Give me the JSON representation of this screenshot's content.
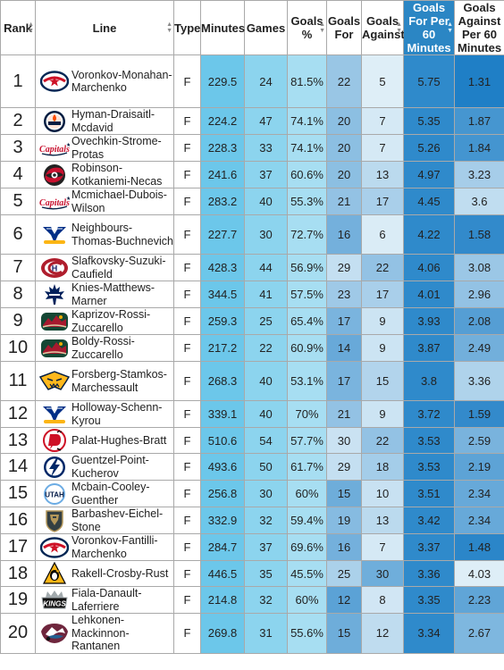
{
  "columns": [
    "Rank",
    "Line",
    "Type",
    "Minutes",
    "Games",
    "Goals %",
    "Goals For",
    "Goals Against",
    "Goals For Per 60 Minutes",
    "Goals Against Per 60 Minutes"
  ],
  "colors": {
    "header_highlight": "#2b86c4",
    "minutes_cell": "#6cc7ea",
    "games_cell": "#8cd4ee",
    "goals_pct_cell": "#a7def2",
    "gf60_cell": "#2f8acb",
    "ga60_top": "#1f7fc6"
  },
  "rows": [
    {
      "rank": "1",
      "line": "Voronkov-Monahan-Marchenko",
      "team_icon": "blue-jackets-logo-icon",
      "type": "F",
      "minutes": "229.5",
      "games": "24",
      "goals_pct": "81.5%",
      "goals_for": "22",
      "goals_against": "5",
      "gf60": "5.75",
      "ga60": "1.31"
    },
    {
      "rank": "2",
      "line": "Hyman-Draisaitl-Mcdavid",
      "team_icon": "oilers-logo-icon",
      "type": "F",
      "minutes": "224.2",
      "games": "47",
      "goals_pct": "74.1%",
      "goals_for": "20",
      "goals_against": "7",
      "gf60": "5.35",
      "ga60": "1.87"
    },
    {
      "rank": "3",
      "line": "Ovechkin-Strome-Protas",
      "team_icon": "capitals-logo-icon",
      "type": "F",
      "minutes": "228.3",
      "games": "33",
      "goals_pct": "74.1%",
      "goals_for": "20",
      "goals_against": "7",
      "gf60": "5.26",
      "ga60": "1.84"
    },
    {
      "rank": "4",
      "line": "Robinson-Kotkaniemi-Necas",
      "team_icon": "hurricanes-logo-icon",
      "type": "F",
      "minutes": "241.6",
      "games": "37",
      "goals_pct": "60.6%",
      "goals_for": "20",
      "goals_against": "13",
      "gf60": "4.97",
      "ga60": "3.23"
    },
    {
      "rank": "5",
      "line": "Mcmichael-Dubois-Wilson",
      "team_icon": "capitals-logo-icon",
      "type": "F",
      "minutes": "283.2",
      "games": "40",
      "goals_pct": "55.3%",
      "goals_for": "21",
      "goals_against": "17",
      "gf60": "4.45",
      "ga60": "3.6"
    },
    {
      "rank": "6",
      "line": "Neighbours-Thomas-Buchnevich",
      "team_icon": "blues-logo-icon",
      "type": "F",
      "minutes": "227.7",
      "games": "30",
      "goals_pct": "72.7%",
      "goals_for": "16",
      "goals_against": "6",
      "gf60": "4.22",
      "ga60": "1.58"
    },
    {
      "rank": "7",
      "line": "Slafkovsky-Suzuki-Caufield",
      "team_icon": "canadiens-logo-icon",
      "type": "F",
      "minutes": "428.3",
      "games": "44",
      "goals_pct": "56.9%",
      "goals_for": "29",
      "goals_against": "22",
      "gf60": "4.06",
      "ga60": "3.08"
    },
    {
      "rank": "8",
      "line": "Knies-Matthews-Marner",
      "team_icon": "maple-leafs-logo-icon",
      "type": "F",
      "minutes": "344.5",
      "games": "41",
      "goals_pct": "57.5%",
      "goals_for": "23",
      "goals_against": "17",
      "gf60": "4.01",
      "ga60": "2.96"
    },
    {
      "rank": "9",
      "line": "Kaprizov-Rossi-Zuccarello",
      "team_icon": "wild-logo-icon",
      "type": "F",
      "minutes": "259.3",
      "games": "25",
      "goals_pct": "65.4%",
      "goals_for": "17",
      "goals_against": "9",
      "gf60": "3.93",
      "ga60": "2.08"
    },
    {
      "rank": "10",
      "line": "Boldy-Rossi-Zuccarello",
      "team_icon": "wild-logo-icon",
      "type": "F",
      "minutes": "217.2",
      "games": "22",
      "goals_pct": "60.9%",
      "goals_for": "14",
      "goals_against": "9",
      "gf60": "3.87",
      "ga60": "2.49"
    },
    {
      "rank": "11",
      "line": "Forsberg-Stamkos-Marchessault",
      "team_icon": "predators-logo-icon",
      "type": "F",
      "minutes": "268.3",
      "games": "40",
      "goals_pct": "53.1%",
      "goals_for": "17",
      "goals_against": "15",
      "gf60": "3.8",
      "ga60": "3.36"
    },
    {
      "rank": "12",
      "line": "Holloway-Schenn-Kyrou",
      "team_icon": "blues-logo-icon",
      "type": "F",
      "minutes": "339.1",
      "games": "40",
      "goals_pct": "70%",
      "goals_for": "21",
      "goals_against": "9",
      "gf60": "3.72",
      "ga60": "1.59"
    },
    {
      "rank": "13",
      "line": "Palat-Hughes-Bratt",
      "team_icon": "devils-logo-icon",
      "type": "F",
      "minutes": "510.6",
      "games": "54",
      "goals_pct": "57.7%",
      "goals_for": "30",
      "goals_against": "22",
      "gf60": "3.53",
      "ga60": "2.59"
    },
    {
      "rank": "14",
      "line": "Guentzel-Point-Kucherov",
      "team_icon": "lightning-logo-icon",
      "type": "F",
      "minutes": "493.6",
      "games": "50",
      "goals_pct": "61.7%",
      "goals_for": "29",
      "goals_against": "18",
      "gf60": "3.53",
      "ga60": "2.19"
    },
    {
      "rank": "15",
      "line": "Mcbain-Cooley-Guenther",
      "team_icon": "utah-logo-icon",
      "type": "F",
      "minutes": "256.8",
      "games": "30",
      "goals_pct": "60%",
      "goals_for": "15",
      "goals_against": "10",
      "gf60": "3.51",
      "ga60": "2.34"
    },
    {
      "rank": "16",
      "line": "Barbashev-Eichel-Stone",
      "team_icon": "golden-knights-logo-icon",
      "type": "F",
      "minutes": "332.9",
      "games": "32",
      "goals_pct": "59.4%",
      "goals_for": "19",
      "goals_against": "13",
      "gf60": "3.42",
      "ga60": "2.34"
    },
    {
      "rank": "17",
      "line": "Voronkov-Fantilli-Marchenko",
      "team_icon": "blue-jackets-logo-icon",
      "type": "F",
      "minutes": "284.7",
      "games": "37",
      "goals_pct": "69.6%",
      "goals_for": "16",
      "goals_against": "7",
      "gf60": "3.37",
      "ga60": "1.48"
    },
    {
      "rank": "18",
      "line": "Rakell-Crosby-Rust",
      "team_icon": "penguins-logo-icon",
      "type": "F",
      "minutes": "446.5",
      "games": "35",
      "goals_pct": "45.5%",
      "goals_for": "25",
      "goals_against": "30",
      "gf60": "3.36",
      "ga60": "4.03"
    },
    {
      "rank": "19",
      "line": "Fiala-Danault-Laferriere",
      "team_icon": "kings-logo-icon",
      "type": "F",
      "minutes": "214.8",
      "games": "32",
      "goals_pct": "60%",
      "goals_for": "12",
      "goals_against": "8",
      "gf60": "3.35",
      "ga60": "2.23"
    },
    {
      "rank": "20",
      "line": "Lehkonen-Mackinnon-Rantanen",
      "team_icon": "avalanche-logo-icon",
      "type": "F",
      "minutes": "269.8",
      "games": "31",
      "goals_pct": "55.6%",
      "goals_for": "15",
      "goals_against": "12",
      "gf60": "3.34",
      "ga60": "2.67"
    }
  ],
  "logo_text": {
    "capitals-logo-icon": "Capitals",
    "utah-logo-icon": "UTAH",
    "kings-logo-icon": "KINGS"
  }
}
